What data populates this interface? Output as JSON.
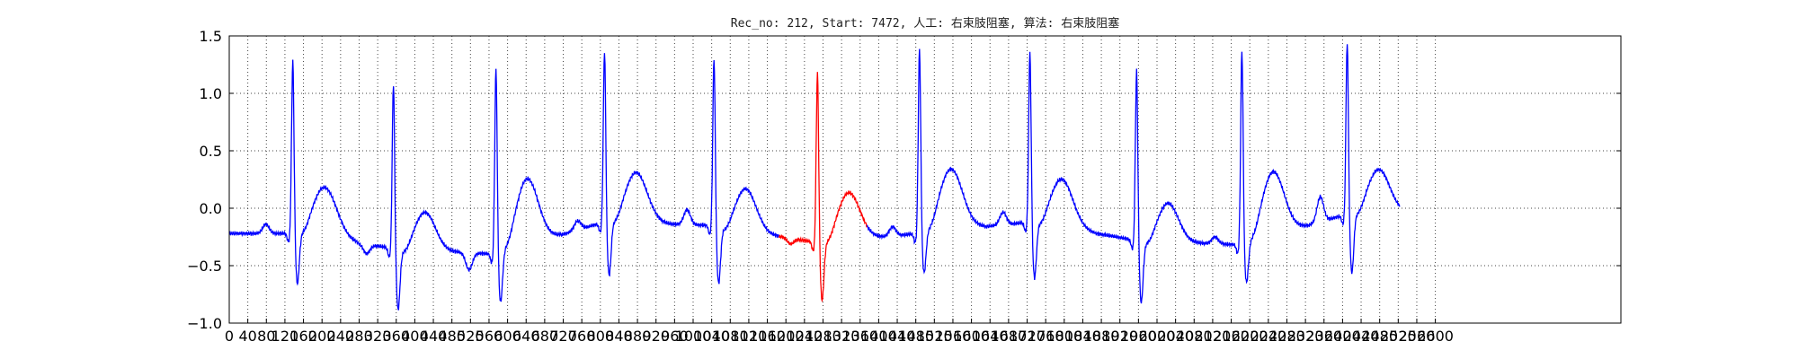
{
  "chart_data": {
    "type": "line",
    "title": "Rec_no: 212, Start: 7472, 人工: 右束肢阻塞, 算法: 右束肢阻塞",
    "xlabel": "",
    "ylabel": "",
    "xlim": [
      0,
      3000
    ],
    "ylim": [
      -1.0,
      1.5
    ],
    "grid": true,
    "y_ticks": [
      {
        "value": -1.0,
        "label": "−1.0"
      },
      {
        "value": -0.5,
        "label": "−0.5"
      },
      {
        "value": 0.0,
        "label": "0.0"
      },
      {
        "value": 0.5,
        "label": "0.5"
      },
      {
        "value": 1.0,
        "label": "1.0"
      },
      {
        "value": 1.5,
        "label": "1.5"
      }
    ],
    "x_ticks": [
      0,
      40,
      80,
      120,
      160,
      200,
      240,
      280,
      320,
      360,
      400,
      440,
      480,
      520,
      560,
      600,
      640,
      680,
      720,
      760,
      800,
      840,
      880,
      920,
      960,
      1000,
      1040,
      1080,
      1120,
      1160,
      1200,
      1240,
      1280,
      1320,
      1360,
      1400,
      1440,
      1480,
      1520,
      1560,
      1600,
      1640,
      1680,
      1720,
      1760,
      1800,
      1840,
      1880,
      1920,
      1960,
      2000,
      2040,
      2080,
      2120,
      2160,
      2200,
      2240,
      2280,
      2320,
      2360,
      2400,
      2440,
      2480,
      2520,
      2560,
      2600
    ],
    "series": [
      {
        "color": "#0000ff",
        "beats": [
          {
            "r": 137,
            "r_amp": 1.3,
            "s_amp": -0.72,
            "p_amp": 0.08,
            "t_amp": 0.23,
            "base": -0.22,
            "twidth": 26
          },
          {
            "r": 354,
            "r_amp": 1.1,
            "s_amp": -0.93,
            "p_amp": -0.08,
            "t_amp": 0.0,
            "base": -0.35,
            "twidth": 22
          },
          {
            "r": 575,
            "r_amp": 1.23,
            "s_amp": -0.88,
            "p_amp": -0.15,
            "t_amp": 0.32,
            "base": -0.4,
            "twidth": 24
          },
          {
            "r": 809,
            "r_amp": 1.38,
            "s_amp": -0.64,
            "p_amp": 0.08,
            "t_amp": 0.36,
            "base": -0.12,
            "twidth": 24
          },
          {
            "r": 1045,
            "r_amp": 1.33,
            "s_amp": -0.7,
            "p_amp": 0.13,
            "t_amp": 0.21,
            "base": -0.15,
            "twidth": 22
          },
          {
            "r": 1488,
            "r_amp": 1.4,
            "s_amp": -0.62,
            "p_amp": 0.08,
            "t_amp": 0.4,
            "base": -0.22,
            "twidth": 25
          },
          {
            "r": 1726,
            "r_amp": 1.38,
            "s_amp": -0.66,
            "p_amp": 0.11,
            "t_amp": 0.3,
            "base": -0.12,
            "twidth": 24
          },
          {
            "r": 1956,
            "r_amp": 1.22,
            "s_amp": -0.87,
            "p_amp": 0.0,
            "t_amp": 0.08,
            "base": -0.28,
            "twidth": 22
          },
          {
            "r": 2183,
            "r_amp": 1.38,
            "s_amp": -0.7,
            "p_amp": 0.06,
            "t_amp": 0.38,
            "base": -0.32,
            "twidth": 24
          },
          {
            "r": 2410,
            "r_amp": 1.45,
            "s_amp": -0.62,
            "p_amp": 0.22,
            "t_amp": 0.38,
            "base": -0.05,
            "twidth": 24
          }
        ]
      },
      {
        "color": "#ff0000",
        "x_start": 1185,
        "x_end": 1375,
        "beats": [
          {
            "r": 1268,
            "r_amp": 1.2,
            "s_amp": -0.86,
            "p_amp": -0.05,
            "t_amp": 0.18,
            "base": -0.3,
            "twidth": 24
          }
        ]
      }
    ],
    "x_end": 2523
  }
}
